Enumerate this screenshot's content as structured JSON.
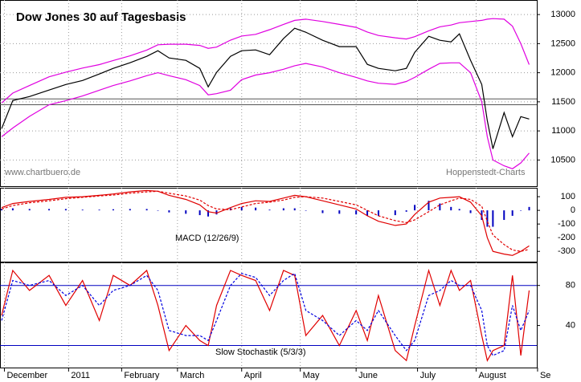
{
  "chart_data": [
    {
      "type": "line",
      "title": "Dow Jones 30 auf Tagesbasis",
      "annotations": [
        "www.chartbuero.de",
        "Hoppenstedt-Charts"
      ],
      "x": [
        0,
        4,
        10,
        17,
        23,
        29,
        35,
        40,
        46,
        52,
        56,
        60,
        66,
        71,
        74,
        77,
        82,
        86,
        91,
        96,
        101,
        105,
        109,
        115,
        121,
        127,
        131,
        135,
        141,
        145,
        148,
        153,
        157,
        161,
        164,
        168,
        172,
        174,
        176,
        180,
        183,
        186,
        189
      ],
      "xlim": [
        0,
        190
      ],
      "ylim": [
        10050,
        13250
      ],
      "yticks": [
        10500,
        11000,
        11500,
        12000,
        12500,
        13000
      ],
      "hlines": [
        11450,
        11550
      ],
      "grid": true,
      "series": [
        {
          "color": "#000000",
          "values": [
            11039,
            11522,
            11591,
            11702,
            11798,
            11867,
            11978,
            12075,
            12171,
            12282,
            12378,
            12254,
            12213,
            12075,
            11757,
            12006,
            12282,
            12378,
            12392,
            12309,
            12586,
            12765,
            12696,
            12558,
            12448,
            12448,
            12144,
            12075,
            12033,
            12075,
            12351,
            12627,
            12558,
            12530,
            12668,
            12213,
            11798,
            11177,
            10693,
            11315,
            10901,
            11246,
            11204
          ]
        },
        {
          "color": "#e000e0",
          "values": [
            11480,
            11650,
            11780,
            11930,
            12010,
            12080,
            12140,
            12210,
            12290,
            12390,
            12480,
            12490,
            12490,
            12470,
            12420,
            12440,
            12560,
            12630,
            12660,
            12740,
            12830,
            12900,
            12920,
            12880,
            12830,
            12780,
            12700,
            12640,
            12600,
            12580,
            12620,
            12720,
            12790,
            12820,
            12860,
            12880,
            12900,
            12920,
            12930,
            12920,
            12800,
            12500,
            12140
          ]
        },
        {
          "color": "#e000e0",
          "values": [
            10900,
            11050,
            11250,
            11450,
            11520,
            11600,
            11700,
            11780,
            11860,
            11950,
            12000,
            11950,
            11880,
            11780,
            11620,
            11640,
            11700,
            11880,
            11960,
            12000,
            12060,
            12120,
            12160,
            12100,
            12000,
            11920,
            11860,
            11820,
            11800,
            11850,
            11920,
            12060,
            12160,
            12170,
            12170,
            12000,
            11500,
            10900,
            10500,
            10400,
            10350,
            10450,
            10620
          ]
        }
      ]
    },
    {
      "type": "line",
      "label": "MACD (12/26/9)",
      "x": [
        0,
        4,
        10,
        17,
        23,
        29,
        35,
        40,
        46,
        52,
        56,
        60,
        66,
        71,
        74,
        77,
        82,
        86,
        91,
        96,
        101,
        105,
        109,
        115,
        121,
        127,
        131,
        135,
        141,
        145,
        148,
        153,
        157,
        161,
        164,
        168,
        172,
        174,
        176,
        180,
        183,
        186,
        189
      ],
      "xlim": [
        0,
        190
      ],
      "ylim": [
        -375,
        165
      ],
      "yticks": [
        -300,
        -200,
        -100,
        0,
        100
      ],
      "series": [
        {
          "kind": "bar",
          "color": "#0000c0",
          "values": [
            10,
            15,
            10,
            10,
            10,
            5,
            5,
            8,
            10,
            10,
            0,
            -15,
            -25,
            -35,
            -45,
            -30,
            15,
            25,
            20,
            5,
            15,
            15,
            0,
            -20,
            -25,
            -30,
            -40,
            -40,
            -35,
            -10,
            40,
            70,
            50,
            25,
            10,
            -20,
            -70,
            -120,
            -120,
            -70,
            -40,
            0,
            25
          ]
        },
        {
          "kind": "line",
          "color": "#e00000",
          "values": [
            20,
            50,
            65,
            80,
            95,
            100,
            110,
            120,
            135,
            145,
            140,
            110,
            80,
            40,
            -10,
            -20,
            20,
            50,
            70,
            65,
            90,
            110,
            100,
            70,
            40,
            10,
            -40,
            -80,
            -110,
            -100,
            -30,
            60,
            90,
            95,
            100,
            60,
            -40,
            -200,
            -300,
            -320,
            -330,
            -300,
            -260
          ]
        },
        {
          "kind": "line",
          "style": "dashed",
          "color": "#e00000",
          "values": [
            10,
            35,
            55,
            70,
            85,
            95,
            105,
            112,
            125,
            135,
            140,
            125,
            105,
            75,
            35,
            10,
            5,
            25,
            50,
            60,
            75,
            95,
            100,
            90,
            65,
            40,
            0,
            -40,
            -75,
            -90,
            -70,
            -10,
            40,
            70,
            90,
            80,
            30,
            -80,
            -180,
            -250,
            -290,
            -300,
            -285
          ]
        }
      ]
    },
    {
      "type": "line",
      "label": "Slow Stochastik (5/3/3)",
      "x": [
        0,
        4,
        10,
        17,
        23,
        29,
        35,
        40,
        46,
        52,
        56,
        60,
        66,
        71,
        74,
        77,
        82,
        86,
        91,
        96,
        101,
        105,
        109,
        115,
        121,
        127,
        131,
        135,
        141,
        145,
        148,
        153,
        157,
        161,
        164,
        168,
        172,
        174,
        176,
        180,
        183,
        186,
        189
      ],
      "xlim": [
        0,
        190
      ],
      "ylim": [
        -2,
        103
      ],
      "yticks": [
        40,
        80
      ],
      "hlines": [
        20,
        80
      ],
      "xticks": [
        {
          "value": 1,
          "label": "December"
        },
        {
          "value": 24,
          "label": "2011"
        },
        {
          "value": 43,
          "label": "February"
        },
        {
          "value": 63,
          "label": "March"
        },
        {
          "value": 86,
          "label": "April"
        },
        {
          "value": 107,
          "label": "May"
        },
        {
          "value": 127,
          "label": "June"
        },
        {
          "value": 149,
          "label": "July"
        },
        {
          "value": 170,
          "label": "August"
        },
        {
          "value": 192,
          "label": "Se"
        }
      ],
      "series": [
        {
          "kind": "line",
          "color": "#e00000",
          "values": [
            50,
            95,
            75,
            90,
            60,
            85,
            45,
            90,
            80,
            95,
            60,
            15,
            40,
            25,
            20,
            60,
            95,
            90,
            85,
            55,
            95,
            90,
            30,
            50,
            20,
            55,
            25,
            70,
            15,
            5,
            40,
            95,
            60,
            95,
            75,
            85,
            30,
            5,
            15,
            20,
            90,
            10,
            75
          ]
        },
        {
          "kind": "line",
          "style": "dashed",
          "color": "#0000e0",
          "values": [
            45,
            85,
            80,
            85,
            70,
            80,
            60,
            75,
            80,
            90,
            75,
            35,
            30,
            30,
            25,
            45,
            80,
            92,
            88,
            70,
            85,
            92,
            55,
            45,
            30,
            45,
            35,
            55,
            30,
            15,
            25,
            70,
            75,
            85,
            80,
            80,
            55,
            20,
            10,
            15,
            60,
            35,
            55
          ]
        }
      ]
    }
  ]
}
